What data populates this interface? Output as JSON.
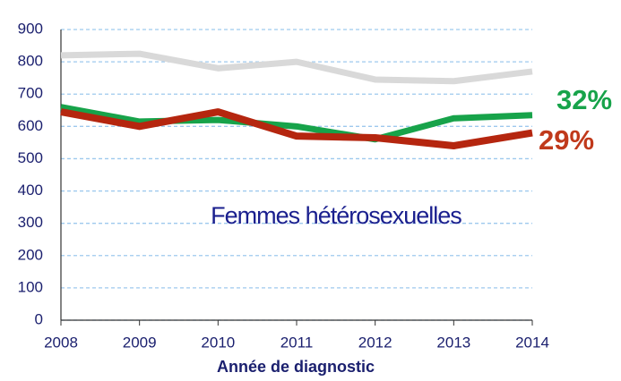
{
  "chart_data": {
    "type": "line",
    "x": [
      2008,
      2009,
      2010,
      2011,
      2012,
      2013,
      2014
    ],
    "series": [
      {
        "color": "#d9d9d9",
        "values": [
          820,
          825,
          780,
          800,
          745,
          740,
          770
        ]
      },
      {
        "color": "#17a34a",
        "values": [
          660,
          615,
          620,
          600,
          560,
          625,
          635
        ]
      },
      {
        "color": "#b5260f",
        "values": [
          645,
          600,
          645,
          570,
          565,
          540,
          580
        ]
      }
    ],
    "xlim": [
      2008,
      2014
    ],
    "xticks": [
      2008,
      2009,
      2010,
      2011,
      2012,
      2013,
      2014
    ],
    "ylim": [
      0,
      900
    ],
    "yticks": [
      0,
      100,
      200,
      300,
      400,
      500,
      600,
      700,
      800,
      900
    ],
    "grid": true,
    "x_label": "Année de diagnostic",
    "annotations": [
      {
        "text": "32%",
        "color": "#17a34a"
      },
      {
        "text": "29%",
        "color": "#c0391b"
      },
      {
        "text": "Femmes hétérosexuelles",
        "color": "#1a1f8e"
      }
    ]
  }
}
